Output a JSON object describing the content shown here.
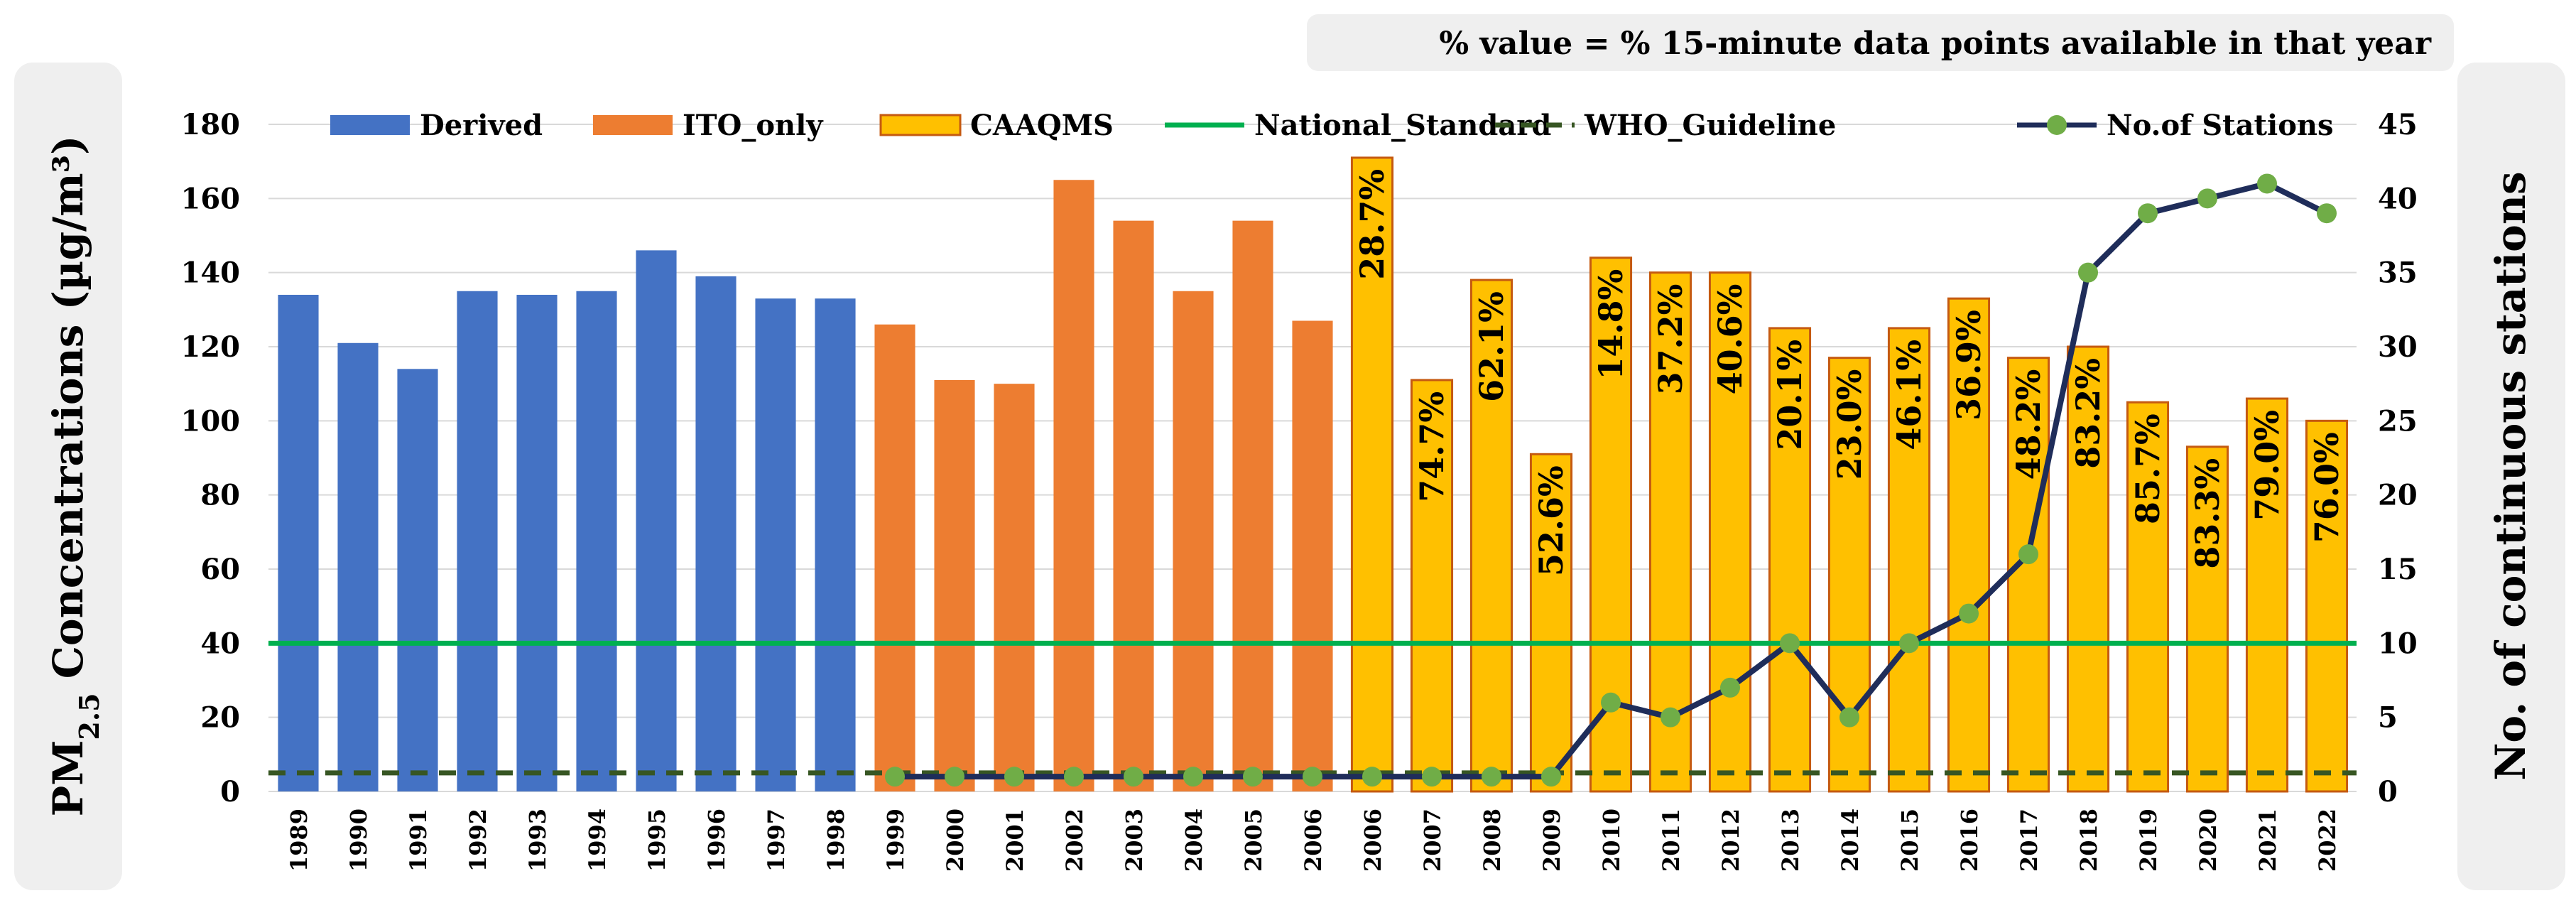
{
  "colors": {
    "derived": "#4472C4",
    "ito_only": "#ED7D31",
    "caaqms": "#FFC000",
    "caaqms_border": "#C55A11",
    "national_standard": "#00B050",
    "who_guideline": "#375623",
    "stations_line": "#1F2D5A",
    "stations_marker": "#70AD47",
    "grid": "#D9D9D9"
  },
  "chart_data": {
    "type": "bar",
    "note": "% value = % 15-minute data points available in that year",
    "ylabel_left_prefix": "PM",
    "ylabel_left_subscript": "2.5",
    "ylabel_left_suffix": " Concentrations (µg/m³)",
    "ylabel_right": "No. of continuous stations",
    "ylim_left": [
      0,
      180
    ],
    "yticks_left": [
      "0",
      "20",
      "40",
      "60",
      "80",
      "100",
      "120",
      "140",
      "160",
      "180"
    ],
    "ylim_right": [
      0,
      45
    ],
    "yticks_right": [
      "0",
      "5",
      "10",
      "15",
      "20",
      "25",
      "30",
      "35",
      "40",
      "45"
    ],
    "categories": [
      "1989",
      "1990",
      "1991",
      "1992",
      "1993",
      "1994",
      "1995",
      "1996",
      "1997",
      "1998",
      "1999",
      "2000",
      "2001",
      "2002",
      "2003",
      "2004",
      "2005",
      "2006",
      "2006",
      "2007",
      "2008",
      "2009",
      "2010",
      "2011",
      "2012",
      "2013",
      "2014",
      "2015",
      "2016",
      "2017",
      "2018",
      "2019",
      "2020",
      "2021",
      "2022"
    ],
    "series": [
      {
        "name": "Derived",
        "kind": "bar",
        "values": [
          134,
          121,
          114,
          135,
          134,
          135,
          146,
          139,
          133,
          133,
          null,
          null,
          null,
          null,
          null,
          null,
          null,
          null,
          null,
          null,
          null,
          null,
          null,
          null,
          null,
          null,
          null,
          null,
          null,
          null,
          null,
          null,
          null,
          null,
          null
        ]
      },
      {
        "name": "ITO_only",
        "kind": "bar",
        "values": [
          null,
          null,
          null,
          null,
          null,
          null,
          null,
          null,
          null,
          null,
          126,
          111,
          110,
          165,
          154,
          135,
          154,
          127,
          null,
          null,
          null,
          null,
          null,
          null,
          null,
          null,
          null,
          null,
          null,
          null,
          null,
          null,
          null,
          null,
          null
        ]
      },
      {
        "name": "CAAQMS",
        "kind": "bar",
        "values": [
          null,
          null,
          null,
          null,
          null,
          null,
          null,
          null,
          null,
          null,
          null,
          null,
          null,
          null,
          null,
          null,
          null,
          null,
          171,
          111,
          138,
          91,
          144,
          140,
          140,
          125,
          117,
          125,
          133,
          117,
          120,
          105,
          93,
          106,
          100
        ]
      },
      {
        "name": "National_Standard",
        "kind": "hline",
        "value": 40
      },
      {
        "name": "WHO_Guideline",
        "kind": "hline",
        "value": 5
      },
      {
        "name": "No.of Stations",
        "kind": "line",
        "axis": "right",
        "values": [
          null,
          null,
          null,
          null,
          null,
          null,
          null,
          null,
          null,
          null,
          1,
          1,
          1,
          1,
          1,
          1,
          1,
          1,
          1,
          1,
          1,
          1,
          6,
          5,
          7,
          10,
          5,
          10,
          12,
          16,
          35,
          39,
          40,
          41,
          39
        ]
      }
    ],
    "bar_labels": [
      "",
      "",
      "",
      "",
      "",
      "",
      "",
      "",
      "",
      "",
      "",
      "",
      "",
      "",
      "",
      "",
      "",
      "",
      "28.7%",
      "74.7%",
      "62.1%",
      "52.6%",
      "14.8%",
      "37.2%",
      "40.6%",
      "20.1%",
      "23.0%",
      "46.1%",
      "36.9%",
      "48.2%",
      "83.2%",
      "85.7%",
      "83.3%",
      "79.0%",
      "76.0%"
    ],
    "legend": [
      "Derived",
      "ITO_only",
      "CAAQMS",
      "National_Standard",
      "WHO_Guideline",
      "No.of Stations"
    ]
  }
}
